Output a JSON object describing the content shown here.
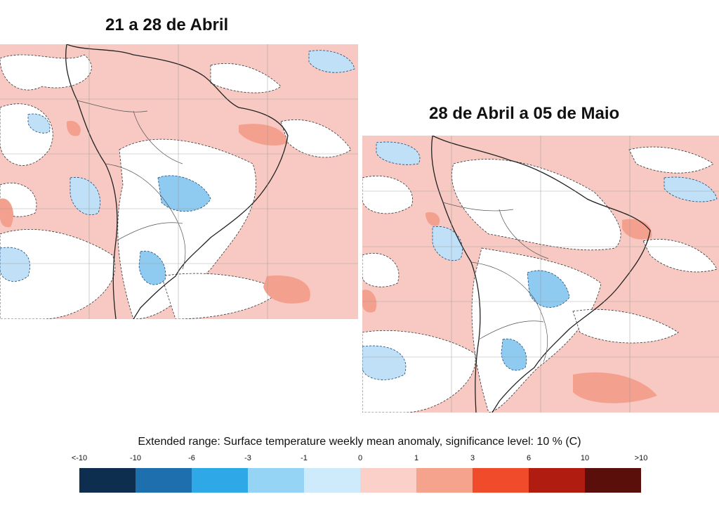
{
  "maps": [
    {
      "title": "21 a 28 de Abril"
    },
    {
      "title": "28 de Abril a 05 de Maio"
    }
  ],
  "legend": {
    "title": "Extended range: Surface temperature weekly mean anomaly, significance level: 10 % (C)",
    "tick_labels": [
      "<-10",
      "-10",
      "-6",
      "-3",
      "-1",
      "0",
      "1",
      "3",
      "6",
      "10",
      ">10"
    ],
    "colors": [
      "#0d2e4e",
      "#1e6fae",
      "#2fa8e8",
      "#96d4f5",
      "#cdebfa",
      "#fbd0c9",
      "#f6a38e",
      "#f04c2c",
      "#b01c0f",
      "#5a0f0a"
    ]
  },
  "colors": {
    "warm_anomaly": "#f7c9c2",
    "neutral": "#ffffff",
    "cool_anomaly": "#bfe0f6",
    "cool_strong": "#8fcaf0",
    "warm_strong": "#f4a08f",
    "coast": "#222222",
    "grid": "#9a9a9a"
  }
}
